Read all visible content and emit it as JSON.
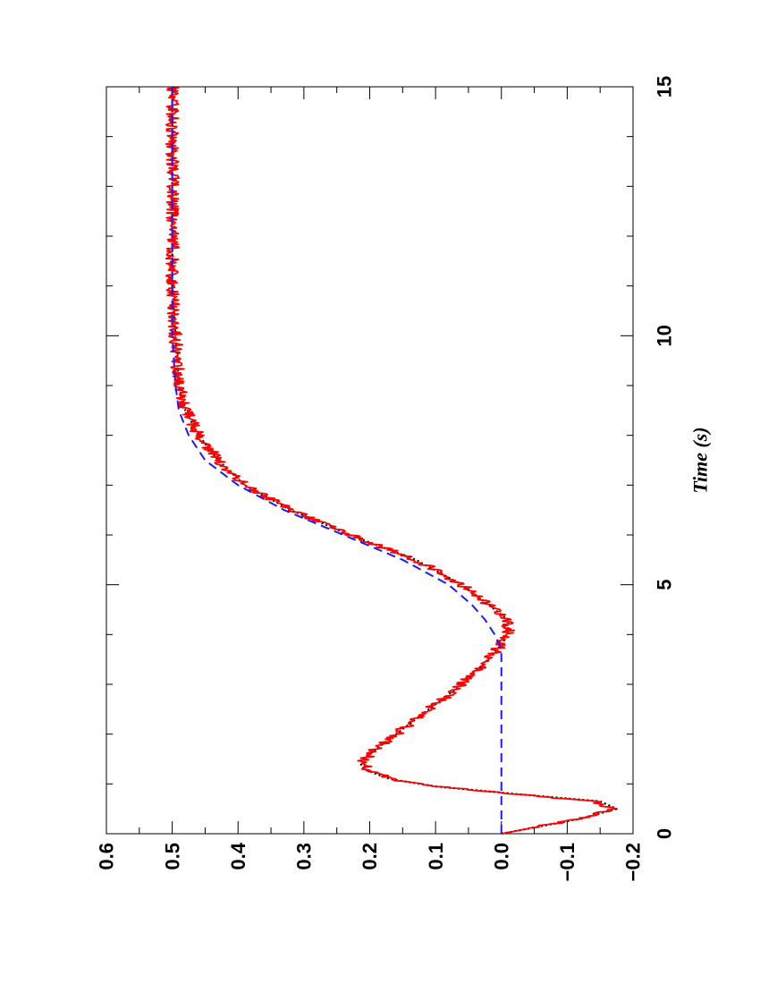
{
  "chart_data": {
    "type": "line",
    "xlabel": "Time (s)",
    "ylabel": "",
    "xlim": [
      0,
      15
    ],
    "ylim": [
      -0.2,
      0.6
    ],
    "x_ticks": [
      0,
      5,
      10,
      15
    ],
    "x_tick_labels": [
      "0",
      "5",
      "10",
      "15"
    ],
    "x_minor_step": 1,
    "y_ticks": [
      -0.2,
      -0.1,
      0.0,
      0.1,
      0.2,
      0.3,
      0.4,
      0.5,
      0.6
    ],
    "y_tick_labels": [
      "−0.2",
      "−0.1",
      "0.0",
      "0.1",
      "0.2",
      "0.3",
      "0.4",
      "0.5",
      "0.6"
    ],
    "y_minor_step": 0.05,
    "grid": false,
    "orientation": "rotated 90 degrees counter-clockwise",
    "series": [
      {
        "style": "dotted",
        "color": "#000000",
        "x": [
          0,
          0.3,
          0.5,
          0.65,
          0.8,
          0.95,
          1.1,
          1.3,
          1.45,
          1.6,
          2.0,
          2.5,
          3.0,
          3.5,
          3.8,
          4.0,
          4.3,
          4.7,
          5.0,
          5.5,
          6.0,
          6.5,
          7.0,
          7.5,
          8.0,
          8.5,
          9.0,
          10.0,
          11.0,
          12.0,
          13.0,
          14.0,
          15.0
        ],
        "y": [
          0.0,
          -0.12,
          -0.175,
          -0.15,
          -0.02,
          0.1,
          0.17,
          0.21,
          0.215,
          0.2,
          0.16,
          0.11,
          0.06,
          0.02,
          0.0,
          -0.01,
          -0.01,
          0.03,
          0.06,
          0.13,
          0.23,
          0.32,
          0.39,
          0.43,
          0.46,
          0.48,
          0.49,
          0.495,
          0.5,
          0.5,
          0.5,
          0.5,
          0.5
        ]
      },
      {
        "style": "solid",
        "color": "#ff0000",
        "noise_amplitude": 0.01,
        "x": [
          0,
          0.3,
          0.5,
          0.65,
          0.8,
          0.95,
          1.1,
          1.3,
          1.45,
          1.6,
          2.0,
          2.5,
          3.0,
          3.5,
          3.8,
          4.0,
          4.3,
          4.7,
          5.0,
          5.5,
          6.0,
          6.5,
          7.0,
          7.5,
          8.0,
          8.5,
          9.0,
          10.0,
          11.0,
          12.0,
          13.0,
          14.0,
          15.0
        ],
        "y": [
          0.0,
          -0.12,
          -0.17,
          -0.14,
          -0.02,
          0.1,
          0.17,
          0.205,
          0.21,
          0.2,
          0.16,
          0.11,
          0.06,
          0.02,
          0.0,
          -0.01,
          -0.01,
          0.03,
          0.06,
          0.13,
          0.23,
          0.32,
          0.39,
          0.43,
          0.46,
          0.48,
          0.49,
          0.495,
          0.5,
          0.5,
          0.5,
          0.5,
          0.5
        ]
      },
      {
        "style": "dashed",
        "color": "#1a1aff",
        "x": [
          0,
          3.6,
          3.8,
          4.0,
          4.3,
          4.6,
          5.0,
          5.5,
          6.0,
          6.5,
          7.0,
          7.5,
          8.0,
          8.5,
          9.0,
          10.0,
          12.0,
          15.0
        ],
        "y": [
          0.0,
          0.0,
          0.003,
          0.01,
          0.025,
          0.045,
          0.08,
          0.15,
          0.24,
          0.33,
          0.4,
          0.45,
          0.475,
          0.49,
          0.495,
          0.5,
          0.5,
          0.5
        ]
      }
    ]
  }
}
